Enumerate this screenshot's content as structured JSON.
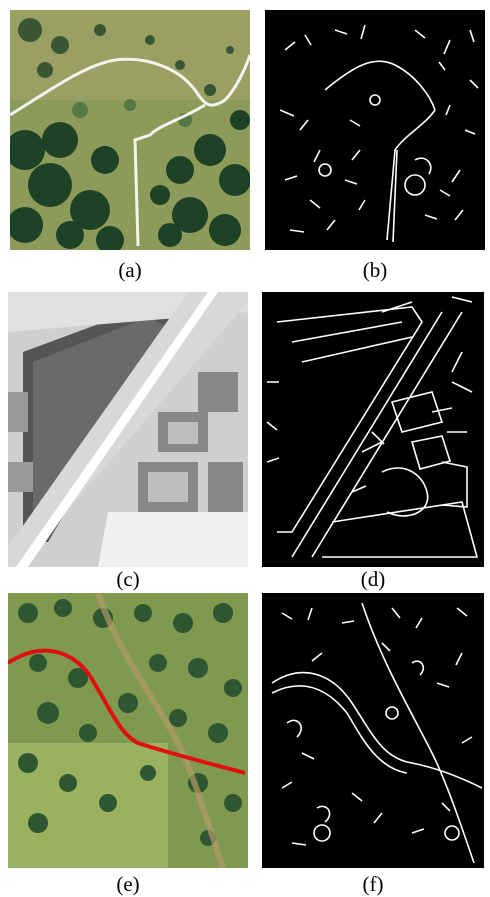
{
  "figure": {
    "panels": [
      {
        "id": "a",
        "caption": "(a)",
        "kind": "aerial-color-with-white-road"
      },
      {
        "id": "b",
        "caption": "(b)",
        "kind": "edge-map"
      },
      {
        "id": "c",
        "caption": "(c)",
        "kind": "aerial-grayscale-urban"
      },
      {
        "id": "d",
        "caption": "(d)",
        "kind": "edge-map"
      },
      {
        "id": "e",
        "caption": "(e)",
        "kind": "aerial-color-with-red-road"
      },
      {
        "id": "f",
        "caption": "(f)",
        "kind": "edge-map"
      }
    ],
    "colors": {
      "edge_background": "#000000",
      "edge_line": "#ffffff",
      "road_overlay_a": "#ffffff",
      "road_overlay_e": "#e01010",
      "vegetation_dark": "#1f4a2a",
      "grass": "#8aa65a"
    }
  }
}
